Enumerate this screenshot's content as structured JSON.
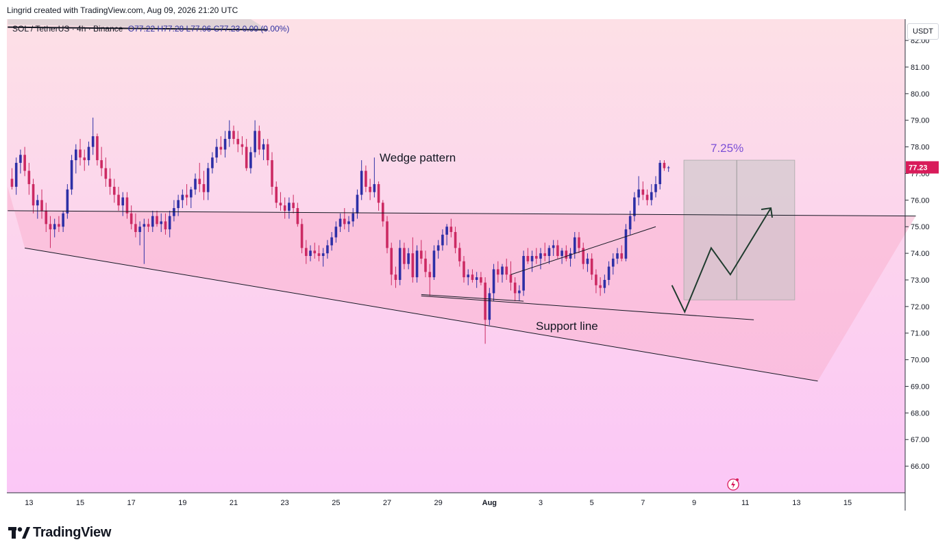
{
  "header": {
    "credit": "Lingrid created with TradingView.com, Aug 09, 2026 21:20 UTC"
  },
  "legend": {
    "symbol": "SOL / TetherUS · 4h · Binance",
    "open": "O77.22",
    "high": "H77.28",
    "low": "L77.06",
    "close": "C77.23",
    "change": "0.00 (0.00%)"
  },
  "currency_button": "USDT",
  "brand": {
    "name": "TradingView"
  },
  "colors": {
    "bull": "#2d2fa6",
    "bear": "#cc2a63",
    "bg_top": "#fde0e6",
    "bg_bottom": "#fbc7f6",
    "wedge_fill": "#f9b3cf",
    "box_fill": "#c4c4c4",
    "last_price": "#d81b5a",
    "annotation_percent": "#7b4fd6"
  },
  "chart_data": {
    "type": "candlestick",
    "ylim": [
      65.0,
      82.8
    ],
    "yticks": [
      "82.00",
      "81.00",
      "80.00",
      "79.00",
      "78.00",
      "77.00",
      "76.00",
      "75.00",
      "74.00",
      "73.00",
      "72.00",
      "71.00",
      "70.00",
      "69.00",
      "68.00",
      "67.00",
      "66.00"
    ],
    "xticks": [
      {
        "label": "13",
        "index": 4
      },
      {
        "label": "15",
        "index": 16
      },
      {
        "label": "17",
        "index": 28
      },
      {
        "label": "19",
        "index": 40
      },
      {
        "label": "21",
        "index": 52
      },
      {
        "label": "23",
        "index": 64
      },
      {
        "label": "25",
        "index": 76
      },
      {
        "label": "27",
        "index": 88
      },
      {
        "label": "29",
        "index": 100
      },
      {
        "label": "Aug",
        "index": 112
      },
      {
        "label": "3",
        "index": 124
      },
      {
        "label": "5",
        "index": 136
      },
      {
        "label": "7",
        "index": 148
      },
      {
        "label": "9",
        "index": 160
      },
      {
        "label": "11",
        "index": 172
      },
      {
        "label": "13",
        "index": 184
      },
      {
        "label": "15",
        "index": 196
      }
    ],
    "x_range": [
      -1.2,
      209.5
    ],
    "last_price": "77.23",
    "annotations": {
      "wedge": "Wedge pattern",
      "support": "Support line",
      "percent": "7.25%"
    },
    "lines": [
      {
        "name": "upper-trendline",
        "from": [
          -1.0,
          75.6
        ],
        "to": [
          212.0,
          75.4
        ]
      },
      {
        "name": "top-left-line",
        "from": [
          -1.0,
          82.5
        ],
        "to": [
          60.0,
          82.4
        ]
      }
    ],
    "candles": [
      [
        76.8,
        77.2,
        76.4,
        76.5
      ],
      [
        76.5,
        77.6,
        76.2,
        77.4
      ],
      [
        77.4,
        77.9,
        77.0,
        77.7
      ],
      [
        77.7,
        78.0,
        76.9,
        77.1
      ],
      [
        77.1,
        77.4,
        76.2,
        76.6
      ],
      [
        76.6,
        76.8,
        75.5,
        75.8
      ],
      [
        75.8,
        76.2,
        75.3,
        76.0
      ],
      [
        76.0,
        76.4,
        75.3,
        75.6
      ],
      [
        75.6,
        75.9,
        74.8,
        75.1
      ],
      [
        75.1,
        75.4,
        74.2,
        74.9
      ],
      [
        74.9,
        75.3,
        74.6,
        75.1
      ],
      [
        75.1,
        75.4,
        74.8,
        75.0
      ],
      [
        75.0,
        75.6,
        74.8,
        75.5
      ],
      [
        75.5,
        76.6,
        75.3,
        76.4
      ],
      [
        76.4,
        77.7,
        76.2,
        77.5
      ],
      [
        77.5,
        78.1,
        77.0,
        77.9
      ],
      [
        77.9,
        78.3,
        77.3,
        77.6
      ],
      [
        77.6,
        77.9,
        77.1,
        77.5
      ],
      [
        77.5,
        78.2,
        77.3,
        78.0
      ],
      [
        78.0,
        79.1,
        77.7,
        78.4
      ],
      [
        78.4,
        78.5,
        77.3,
        77.5
      ],
      [
        77.5,
        78.0,
        76.9,
        77.2
      ],
      [
        77.2,
        77.6,
        76.5,
        76.8
      ],
      [
        76.8,
        77.2,
        76.2,
        76.5
      ],
      [
        76.5,
        76.8,
        75.9,
        76.2
      ],
      [
        76.2,
        76.5,
        75.6,
        75.8
      ],
      [
        75.8,
        76.3,
        75.4,
        76.1
      ],
      [
        76.1,
        76.3,
        75.3,
        75.5
      ],
      [
        75.5,
        75.8,
        74.9,
        75.1
      ],
      [
        75.1,
        75.5,
        74.6,
        74.8
      ],
      [
        74.8,
        75.2,
        74.3,
        75.0
      ],
      [
        75.0,
        75.3,
        73.6,
        75.1
      ],
      [
        75.1,
        75.3,
        74.8,
        75.0
      ],
      [
        75.0,
        75.6,
        74.8,
        75.4
      ],
      [
        75.4,
        75.6,
        75.0,
        75.1
      ],
      [
        75.1,
        75.5,
        74.8,
        75.2
      ],
      [
        75.2,
        75.5,
        74.7,
        74.9
      ],
      [
        74.9,
        75.6,
        74.6,
        75.4
      ],
      [
        75.4,
        76.0,
        75.2,
        75.7
      ],
      [
        75.7,
        76.2,
        75.4,
        76.0
      ],
      [
        76.0,
        76.4,
        75.7,
        76.2
      ],
      [
        76.2,
        76.6,
        75.8,
        76.1
      ],
      [
        76.1,
        76.5,
        75.7,
        76.4
      ],
      [
        76.4,
        77.0,
        76.2,
        76.8
      ],
      [
        76.8,
        77.4,
        76.3,
        76.6
      ],
      [
        76.6,
        77.1,
        76.0,
        76.3
      ],
      [
        76.3,
        77.4,
        76.0,
        77.2
      ],
      [
        77.2,
        77.8,
        77.0,
        77.6
      ],
      [
        77.6,
        78.3,
        77.4,
        78.0
      ],
      [
        78.0,
        78.4,
        77.7,
        77.9
      ],
      [
        77.9,
        78.6,
        77.6,
        78.3
      ],
      [
        78.3,
        79.0,
        78.0,
        78.6
      ],
      [
        78.6,
        78.8,
        78.1,
        78.3
      ],
      [
        78.3,
        78.6,
        77.8,
        78.1
      ],
      [
        78.1,
        78.4,
        77.7,
        78.0
      ],
      [
        78.0,
        78.3,
        77.1,
        77.2
      ],
      [
        77.2,
        78.0,
        77.0,
        77.8
      ],
      [
        77.8,
        79.0,
        77.6,
        78.6
      ],
      [
        78.6,
        78.8,
        77.7,
        77.9
      ],
      [
        77.9,
        78.3,
        77.5,
        78.1
      ],
      [
        78.1,
        78.3,
        77.3,
        77.5
      ],
      [
        77.5,
        77.8,
        76.2,
        76.5
      ],
      [
        76.5,
        76.7,
        75.7,
        75.9
      ],
      [
        75.9,
        76.3,
        75.6,
        75.8
      ],
      [
        75.8,
        76.1,
        75.3,
        75.6
      ],
      [
        75.6,
        76.1,
        75.3,
        75.9
      ],
      [
        75.9,
        76.2,
        75.5,
        75.7
      ],
      [
        75.7,
        75.9,
        75.0,
        75.1
      ],
      [
        75.1,
        75.3,
        74.0,
        74.2
      ],
      [
        74.2,
        74.5,
        73.6,
        73.9
      ],
      [
        73.9,
        74.3,
        73.7,
        74.1
      ],
      [
        74.1,
        74.4,
        73.8,
        74.0
      ],
      [
        74.0,
        74.3,
        73.7,
        73.9
      ],
      [
        73.9,
        74.2,
        73.5,
        74.0
      ],
      [
        74.0,
        74.5,
        73.8,
        74.3
      ],
      [
        74.3,
        74.8,
        74.1,
        74.6
      ],
      [
        74.6,
        75.2,
        74.4,
        75.0
      ],
      [
        75.0,
        75.5,
        74.8,
        75.3
      ],
      [
        75.3,
        75.7,
        74.9,
        75.1
      ],
      [
        75.1,
        75.4,
        74.8,
        75.2
      ],
      [
        75.2,
        75.7,
        75.0,
        75.5
      ],
      [
        75.5,
        76.4,
        75.3,
        76.2
      ],
      [
        76.2,
        77.5,
        76.0,
        77.1
      ],
      [
        77.1,
        77.3,
        76.3,
        76.5
      ],
      [
        76.5,
        76.8,
        76.0,
        76.3
      ],
      [
        76.3,
        77.6,
        76.1,
        76.6
      ],
      [
        76.6,
        76.7,
        75.6,
        75.9
      ],
      [
        75.9,
        76.0,
        75.0,
        75.2
      ],
      [
        75.2,
        75.4,
        74.0,
        74.2
      ],
      [
        74.2,
        74.4,
        72.8,
        73.2
      ],
      [
        73.2,
        73.5,
        72.7,
        73.0
      ],
      [
        73.0,
        74.5,
        72.8,
        74.2
      ],
      [
        74.2,
        74.4,
        73.4,
        73.6
      ],
      [
        73.6,
        74.2,
        73.4,
        74.0
      ],
      [
        74.0,
        74.6,
        72.9,
        73.1
      ],
      [
        73.1,
        74.3,
        72.9,
        74.1
      ],
      [
        74.1,
        74.5,
        73.6,
        73.8
      ],
      [
        73.8,
        74.1,
        73.1,
        73.3
      ],
      [
        73.3,
        73.6,
        72.4,
        73.1
      ],
      [
        73.1,
        74.3,
        73.0,
        74.1
      ],
      [
        74.1,
        74.5,
        73.8,
        74.3
      ],
      [
        74.3,
        74.9,
        74.1,
        74.7
      ],
      [
        74.7,
        75.1,
        74.3,
        75.0
      ],
      [
        75.0,
        75.3,
        74.6,
        74.8
      ],
      [
        74.8,
        75.0,
        74.0,
        74.2
      ],
      [
        74.2,
        74.4,
        73.5,
        73.7
      ],
      [
        73.7,
        73.9,
        72.9,
        73.1
      ],
      [
        73.1,
        73.4,
        72.8,
        73.2
      ],
      [
        73.2,
        73.4,
        72.9,
        73.0
      ],
      [
        73.0,
        73.3,
        72.7,
        73.1
      ],
      [
        73.1,
        73.3,
        72.8,
        72.9
      ],
      [
        72.9,
        73.1,
        70.6,
        71.5
      ],
      [
        71.5,
        72.7,
        71.3,
        72.5
      ],
      [
        72.5,
        73.6,
        72.2,
        73.4
      ],
      [
        73.4,
        73.7,
        72.9,
        73.2
      ],
      [
        73.2,
        73.6,
        72.9,
        73.5
      ],
      [
        73.5,
        73.8,
        73.0,
        73.2
      ],
      [
        73.2,
        73.7,
        72.6,
        72.9
      ],
      [
        72.9,
        73.1,
        72.2,
        72.5
      ],
      [
        72.5,
        72.8,
        72.2,
        72.6
      ],
      [
        72.6,
        74.1,
        72.4,
        73.9
      ],
      [
        73.9,
        74.2,
        73.6,
        73.7
      ],
      [
        73.7,
        74.1,
        73.3,
        73.9
      ],
      [
        73.9,
        74.2,
        73.6,
        73.8
      ],
      [
        73.8,
        74.2,
        73.4,
        74.0
      ],
      [
        74.0,
        74.4,
        73.7,
        73.9
      ],
      [
        73.9,
        74.3,
        73.6,
        74.2
      ],
      [
        74.2,
        74.5,
        73.9,
        74.3
      ],
      [
        74.3,
        74.5,
        73.8,
        73.9
      ],
      [
        73.9,
        74.2,
        73.6,
        74.1
      ],
      [
        74.1,
        74.3,
        73.7,
        73.8
      ],
      [
        73.8,
        74.2,
        73.5,
        74.0
      ],
      [
        74.0,
        74.8,
        73.8,
        74.6
      ],
      [
        74.6,
        74.8,
        74.0,
        74.2
      ],
      [
        74.2,
        74.4,
        73.4,
        73.6
      ],
      [
        73.6,
        74.0,
        73.3,
        73.8
      ],
      [
        73.8,
        74.0,
        73.0,
        73.2
      ],
      [
        73.2,
        73.4,
        72.5,
        72.8
      ],
      [
        72.8,
        73.1,
        72.4,
        72.7
      ],
      [
        72.7,
        73.2,
        72.5,
        73.0
      ],
      [
        73.0,
        73.7,
        72.8,
        73.5
      ],
      [
        73.5,
        74.0,
        73.2,
        73.8
      ],
      [
        73.8,
        74.2,
        73.6,
        74.0
      ],
      [
        74.0,
        74.3,
        73.7,
        73.8
      ],
      [
        73.8,
        75.1,
        73.7,
        74.9
      ],
      [
        74.9,
        75.6,
        74.7,
        75.4
      ],
      [
        75.4,
        76.3,
        75.2,
        76.1
      ],
      [
        76.1,
        76.9,
        75.8,
        76.4
      ],
      [
        76.4,
        76.7,
        76.0,
        76.2
      ],
      [
        76.2,
        76.4,
        75.8,
        76.0
      ],
      [
        76.0,
        76.6,
        75.8,
        76.3
      ],
      [
        76.3,
        76.9,
        76.1,
        76.6
      ],
      [
        76.6,
        77.5,
        76.4,
        77.4
      ],
      [
        77.4,
        77.5,
        77.1,
        77.2
      ],
      [
        77.22,
        77.28,
        77.06,
        77.23
      ]
    ]
  }
}
